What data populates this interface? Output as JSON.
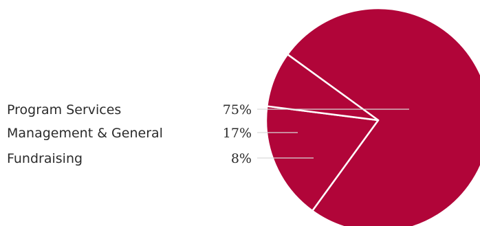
{
  "chart_data": {
    "type": "pie",
    "title": "",
    "categories": [
      "Program Services",
      "Management & General",
      "Fundraising"
    ],
    "values": [
      75,
      17,
      8
    ],
    "value_labels": [
      "75%",
      "17%",
      "8%"
    ],
    "slice_color": "#b10539",
    "separator_color": "#ffffff",
    "leader_color": "#d9d9d9",
    "legend": "left"
  }
}
